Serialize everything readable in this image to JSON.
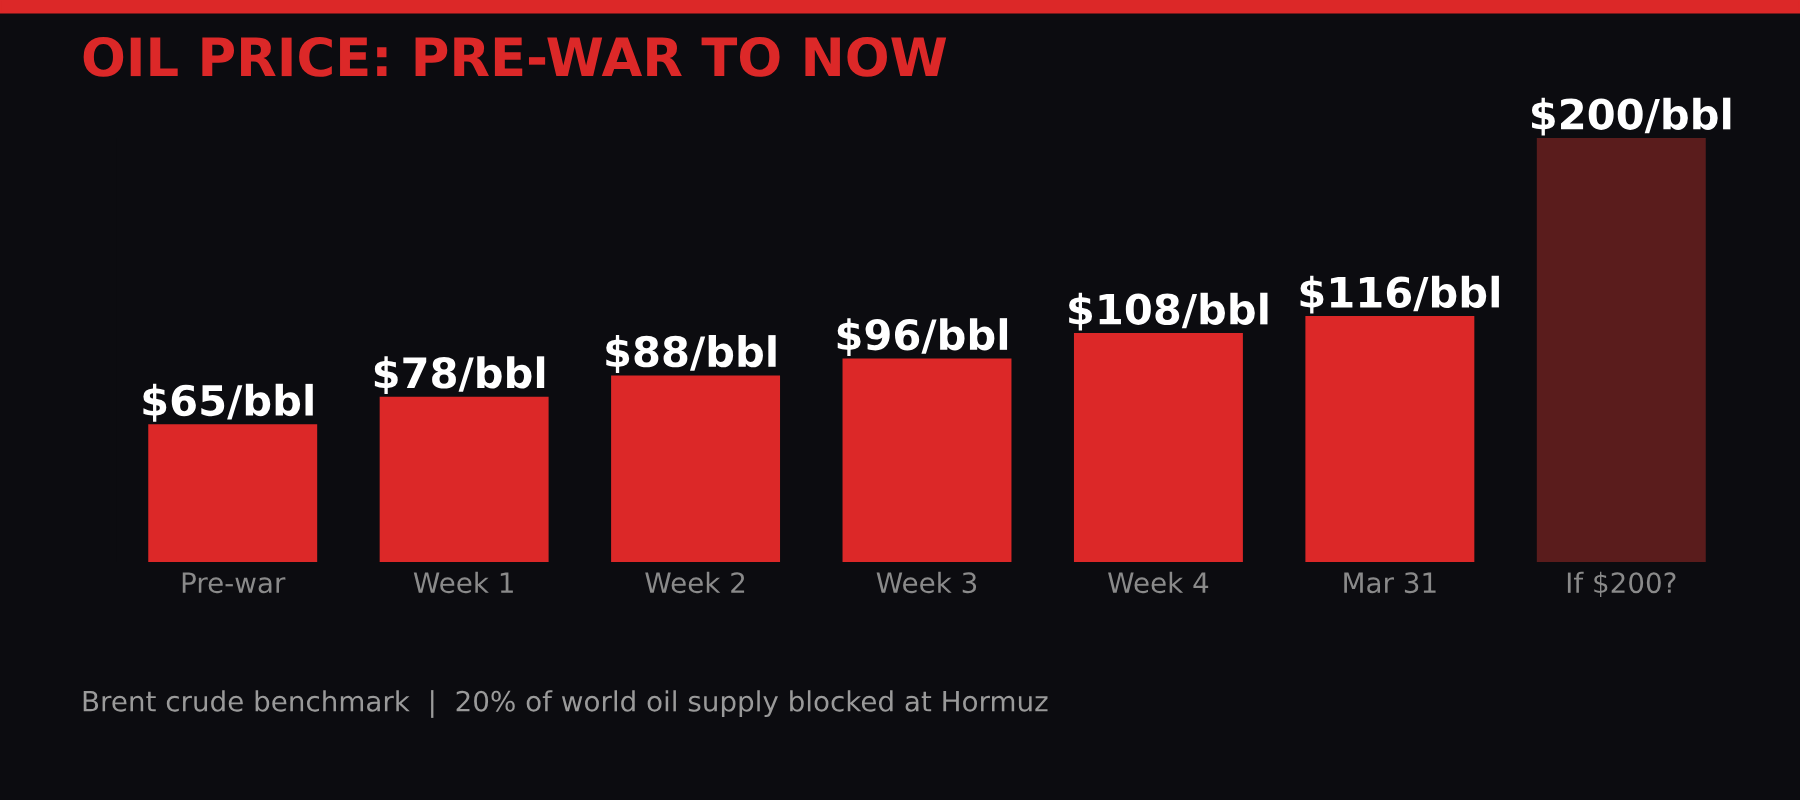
{
  "chart_data": {
    "type": "bar",
    "title": "OIL PRICE: PRE-WAR TO NOW",
    "categories": [
      "Pre-war",
      "Week 1",
      "Week 2",
      "Week 3",
      "Week 4",
      "Mar 31",
      "If $200?"
    ],
    "values": [
      65,
      78,
      88,
      96,
      108,
      116,
      200
    ],
    "value_labels": [
      "$65/bbl",
      "$78/bbl",
      "$88/bbl",
      "$96/bbl",
      "$108/bbl",
      "$116/bbl",
      "$200/bbl"
    ],
    "colors": [
      "#dc2828",
      "#dc2828",
      "#dc2828",
      "#dc2828",
      "#dc2828",
      "#dc2828",
      "#5a1c1c"
    ],
    "annotations": [
      "Brent crude benchmark  |  20% of world oil supply blocked at Hormuz"
    ]
  }
}
